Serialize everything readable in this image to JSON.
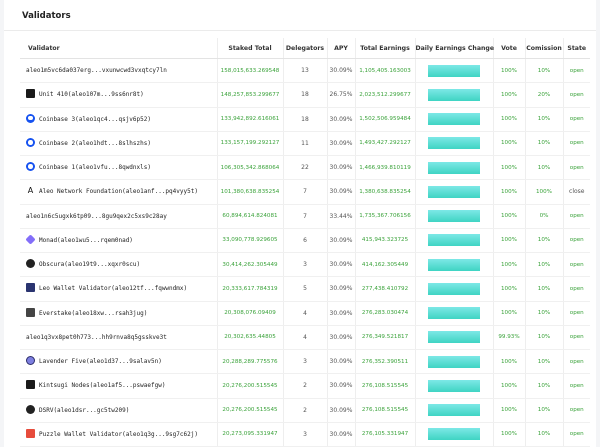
{
  "page": {
    "title": "Validators"
  },
  "columns": {
    "validator": "Validator",
    "staked": "Staked Total",
    "delegators": "Delegators",
    "apy": "APY",
    "earnings": "Total Earnings",
    "daily": "Daily Earnings Change",
    "vote": "Vote",
    "commission": "Comission",
    "state": "State"
  },
  "rows": [
    {
      "logo": "none",
      "name": "aleo1m5vc6da037erg...vxunwcwd3vxqtcy7ln",
      "staked": "158,015,633.269548",
      "delegators": "13",
      "apy": "30.09%",
      "earnings": "1,105,405.163003",
      "daily_fill": 1.0,
      "vote": "100%",
      "commission": "10%",
      "state": "open"
    },
    {
      "logo": "unit410-logo",
      "name": "Unit 410(aleo107m...9ss6nr8t)",
      "staked": "148,257,853.299677",
      "delegators": "18",
      "apy": "26.75%",
      "earnings": "2,023,512.299677",
      "daily_fill": 1.0,
      "vote": "100%",
      "commission": "20%",
      "state": "open"
    },
    {
      "logo": "coinbase-logo",
      "name": "Coinbase 3(aleo1qc4...qsjv6p52)",
      "staked": "133,942,892.616061",
      "delegators": "18",
      "apy": "30.09%",
      "earnings": "1,502,506.959484",
      "daily_fill": 1.0,
      "vote": "100%",
      "commission": "10%",
      "state": "open"
    },
    {
      "logo": "coinbase-logo",
      "name": "Coinbase 2(aleo1hdt...8slhszhs)",
      "staked": "133,157,199.292127",
      "delegators": "11",
      "apy": "30.09%",
      "earnings": "1,493,427.292127",
      "daily_fill": 1.0,
      "vote": "100%",
      "commission": "10%",
      "state": "open"
    },
    {
      "logo": "coinbase-logo",
      "name": "Coinbase 1(aleo1vfu...8qwdnxls)",
      "staked": "106,305,342.868064",
      "delegators": "22",
      "apy": "30.09%",
      "earnings": "1,466,939.810119",
      "daily_fill": 1.0,
      "vote": "100%",
      "commission": "10%",
      "state": "open"
    },
    {
      "logo": "aleo-logo",
      "name": "Aleo Network Foundation(aleo1anf...pq4vyy5t)",
      "staked": "101,380,638.835254",
      "delegators": "7",
      "apy": "30.09%",
      "earnings": "1,380,638.835254",
      "daily_fill": 1.0,
      "vote": "100%",
      "commission": "100%",
      "state": "close"
    },
    {
      "logo": "none",
      "name": "aleo1n6c5ugxk6tp09...8gu9qex2c5xs9c28ay",
      "staked": "60,894,614.824081",
      "delegators": "7",
      "apy": "33.44%",
      "earnings": "1,735,367.706156",
      "daily_fill": 1.0,
      "vote": "100%",
      "commission": "0%",
      "state": "open"
    },
    {
      "logo": "monad-logo",
      "name": "Monad(aleo1wu5...rqem0nad)",
      "staked": "33,090,778.929605",
      "delegators": "6",
      "apy": "30.09%",
      "earnings": "415,943.323725",
      "daily_fill": 1.0,
      "vote": "100%",
      "commission": "10%",
      "state": "open"
    },
    {
      "logo": "obscura-logo",
      "name": "Obscura(aleo19t9...xqxr0scu)",
      "staked": "30,414,262.305449",
      "delegators": "3",
      "apy": "30.09%",
      "earnings": "414,162.305449",
      "daily_fill": 1.0,
      "vote": "100%",
      "commission": "10%",
      "state": "open"
    },
    {
      "logo": "leo-wallet-logo",
      "name": "Leo Wallet Validator(aleo12tf...fqwwndmx)",
      "staked": "20,333,617.784319",
      "delegators": "5",
      "apy": "30.09%",
      "earnings": "277,438.410792",
      "daily_fill": 1.0,
      "vote": "100%",
      "commission": "10%",
      "state": "open"
    },
    {
      "logo": "everstake-logo",
      "name": "Everstake(aleo18xw...rsah3jug)",
      "staked": "20,308,076.09409",
      "delegators": "4",
      "apy": "30.09%",
      "earnings": "276,283.030474",
      "daily_fill": 1.0,
      "vote": "100%",
      "commission": "10%",
      "state": "open"
    },
    {
      "logo": "none",
      "name": "aleo1q3vx8pet0h773...hh9rnva8q5gsskve3t",
      "staked": "20,302,635.44805",
      "delegators": "4",
      "apy": "30.09%",
      "earnings": "276,349.521817",
      "daily_fill": 1.0,
      "vote": "99.93%",
      "commission": "10%",
      "state": "open"
    },
    {
      "logo": "lavender-logo",
      "name": "Lavender Five(aleo1d37...9salav5n)",
      "staked": "20,288,289.775576",
      "delegators": "3",
      "apy": "30.09%",
      "earnings": "276,352.390511",
      "daily_fill": 1.0,
      "vote": "100%",
      "commission": "10%",
      "state": "open"
    },
    {
      "logo": "kintsugi-logo",
      "name": "Kintsugi Nodes(aleo1af5...pswaefgw)",
      "staked": "20,276,200.515545",
      "delegators": "2",
      "apy": "30.09%",
      "earnings": "276,108.515545",
      "daily_fill": 1.0,
      "vote": "100%",
      "commission": "10%",
      "state": "open"
    },
    {
      "logo": "dsrv-logo",
      "name": "DSRV(aleo1dsr...gc5tw209)",
      "staked": "20,276,200.515545",
      "delegators": "2",
      "apy": "30.09%",
      "earnings": "276,108.515545",
      "daily_fill": 1.0,
      "vote": "100%",
      "commission": "10%",
      "state": "open"
    },
    {
      "logo": "puzzle-logo",
      "name": "Puzzle Wallet Validator(aleo1q3g...9sg7c62j)",
      "staked": "20,273,095.331947",
      "delegators": "3",
      "apy": "30.09%",
      "earnings": "276,105.331947",
      "daily_fill": 1.0,
      "vote": "100%",
      "commission": "10%",
      "state": "open"
    }
  ]
}
